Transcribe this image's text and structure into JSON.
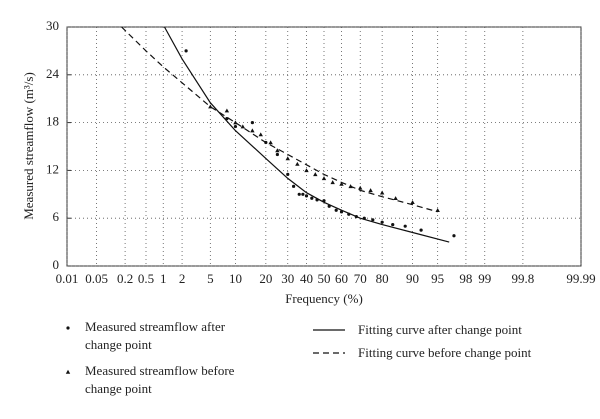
{
  "chart_data": {
    "type": "scatter",
    "x_label": "Frequency (%)",
    "y_label": "Measured streamflow (m³/s)",
    "xscale": "probability",
    "xlim": [
      0.01,
      99.99
    ],
    "xticks": [
      0.01,
      0.05,
      0.2,
      0.5,
      1,
      2,
      5,
      10,
      20,
      30,
      40,
      50,
      60,
      70,
      80,
      90,
      95,
      98,
      99,
      99.8,
      99.99
    ],
    "ylim": [
      0,
      30
    ],
    "yticks": [
      0,
      6,
      12,
      18,
      24,
      30
    ],
    "grid": true,
    "series": [
      {
        "name": "Measured streamflow after change point",
        "style": "dot",
        "color": "#111",
        "x": [
          2.3,
          8,
          10,
          15,
          20,
          25,
          30,
          33,
          36,
          38,
          40,
          43,
          46,
          50,
          53,
          57,
          60,
          64,
          68,
          72,
          76,
          80,
          84,
          88,
          92,
          97
        ],
        "values": [
          27,
          18.5,
          17.5,
          18,
          15.5,
          14,
          11.5,
          10,
          9,
          9,
          8.8,
          8.5,
          8.3,
          8.2,
          7.5,
          7,
          6.8,
          6.5,
          6.2,
          6,
          5.8,
          5.5,
          5.2,
          5,
          4.5,
          3.8
        ]
      },
      {
        "name": "Measured streamflow before change point",
        "style": "triangle",
        "color": "#111",
        "x": [
          5,
          8,
          10,
          12,
          15,
          18,
          22,
          25,
          30,
          35,
          40,
          45,
          50,
          55,
          60,
          65,
          70,
          75,
          80,
          85,
          90,
          95
        ],
        "values": [
          20,
          19.5,
          18,
          17.5,
          17,
          16.5,
          15.5,
          14.5,
          13.5,
          12.8,
          12,
          11.5,
          11,
          10.5,
          10.3,
          10,
          9.8,
          9.5,
          9.2,
          8.5,
          8,
          7
        ]
      },
      {
        "name": "Fitting curve after change point",
        "style": "solid",
        "color": "#111",
        "x": [
          1.05,
          2,
          5,
          10,
          20,
          30,
          40,
          50,
          60,
          70,
          80,
          90,
          96.5
        ],
        "values": [
          30,
          26,
          20.5,
          17,
          13.5,
          11,
          9.2,
          8,
          7,
          6,
          5.2,
          4.2,
          3
        ]
      },
      {
        "name": "Fitting curve before change point",
        "style": "dashed",
        "color": "#111",
        "x": [
          0.17,
          0.5,
          1,
          2,
          5,
          10,
          20,
          30,
          40,
          50,
          60,
          70,
          80,
          90,
          95
        ],
        "values": [
          30,
          27,
          25,
          23,
          20,
          18,
          15.5,
          14,
          12.7,
          11.5,
          10.5,
          9.5,
          8.7,
          7.7,
          6.8
        ]
      }
    ]
  }
}
